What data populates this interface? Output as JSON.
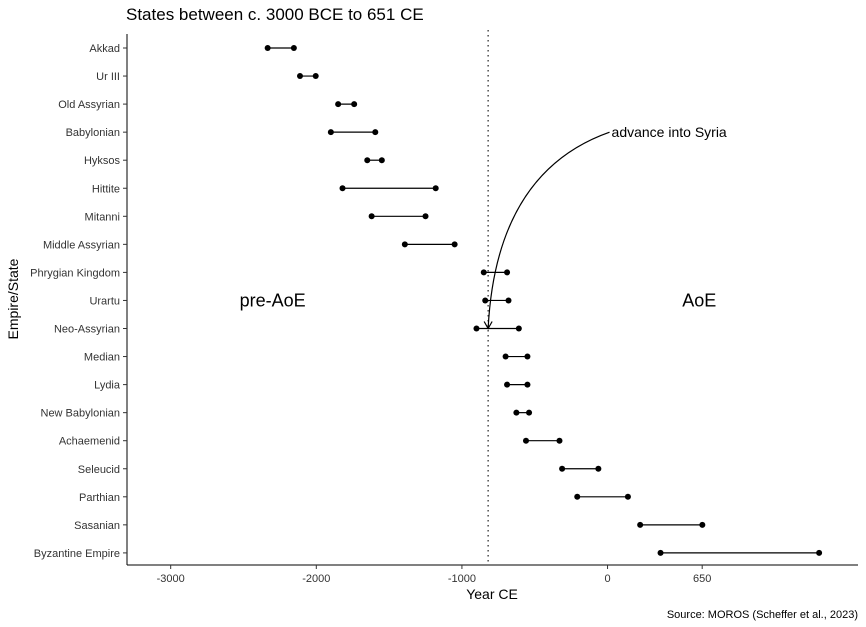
{
  "chart_data": {
    "type": "dumbbell",
    "title": "States between c. 3000 BCE to 651 CE",
    "xlabel": "Year CE",
    "ylabel": "Empire/State",
    "caption": "Source: MOROS (Scheffer et al., 2023)",
    "xlim": [
      -3300,
      1720
    ],
    "xticks": [
      -3000,
      -2000,
      -1000,
      0,
      650
    ],
    "xtick_labels": [
      "-3000",
      "-2000",
      "-1000",
      "0",
      "650"
    ],
    "reference_line": {
      "x": -820,
      "style": "dotted"
    },
    "region_labels": [
      {
        "text": "pre-AoE",
        "x": -2300
      },
      {
        "text": "AoE",
        "x": 630
      }
    ],
    "annotation": {
      "text": "advance into Syria",
      "target_x": -820,
      "target_category": "Neo-Assyrian"
    },
    "grid": false,
    "legend": "none",
    "series": [
      {
        "category": "Akkad",
        "start": -2334,
        "end": -2154
      },
      {
        "category": "Ur III",
        "start": -2112,
        "end": -2004
      },
      {
        "category": "Old Assyrian",
        "start": -1850,
        "end": -1740
      },
      {
        "category": "Babylonian",
        "start": -1900,
        "end": -1595
      },
      {
        "category": "Hyksos",
        "start": -1650,
        "end": -1550
      },
      {
        "category": "Hittite",
        "start": -1820,
        "end": -1180
      },
      {
        "category": "Mitanni",
        "start": -1620,
        "end": -1250
      },
      {
        "category": "Middle Assyrian",
        "start": -1392,
        "end": -1050
      },
      {
        "category": "Phrygian Kingdom",
        "start": -850,
        "end": -690
      },
      {
        "category": "Urartu",
        "start": -840,
        "end": -680
      },
      {
        "category": "Neo-Assyrian",
        "start": -900,
        "end": -609
      },
      {
        "category": "Median",
        "start": -700,
        "end": -550
      },
      {
        "category": "Lydia",
        "start": -690,
        "end": -550
      },
      {
        "category": "New Babylonian",
        "start": -626,
        "end": -539
      },
      {
        "category": "Achaemenid",
        "start": -560,
        "end": -330
      },
      {
        "category": "Seleucid",
        "start": -312,
        "end": -63
      },
      {
        "category": "Parthian",
        "start": -208,
        "end": 140
      },
      {
        "category": "Sasanian",
        "start": 224,
        "end": 651
      },
      {
        "category": "Byzantine Empire",
        "start": 364,
        "end": 1453
      }
    ]
  }
}
